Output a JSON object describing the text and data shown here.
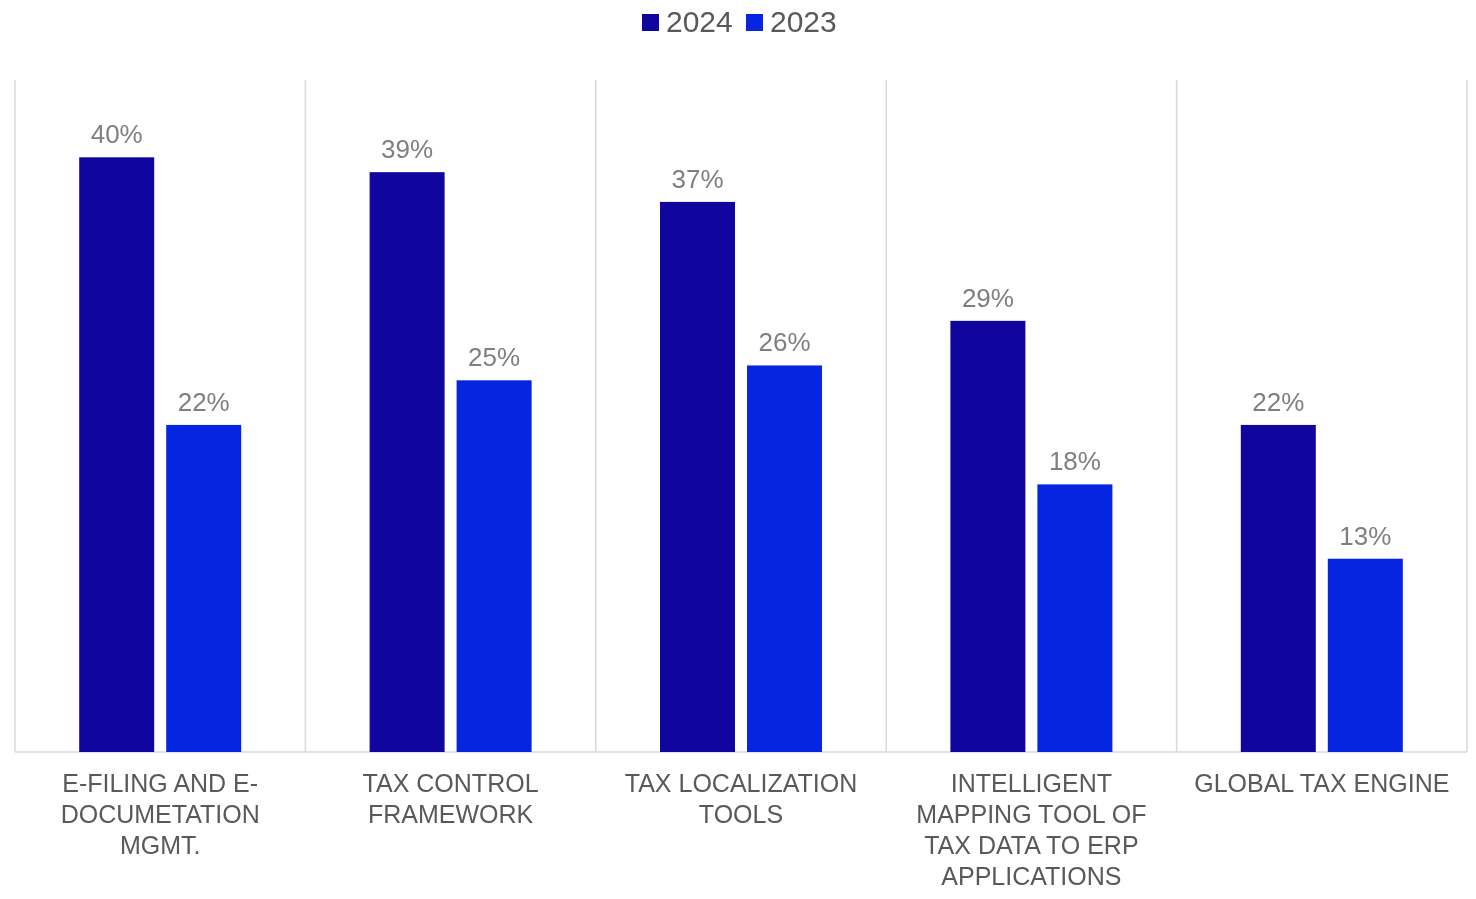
{
  "chart_data": {
    "type": "bar",
    "categories": [
      "E-FILING AND E-DOCUMETATION MGMT.",
      "TAX CONTROL FRAMEWORK",
      "TAX LOCALIZATION TOOLS",
      "INTELLIGENT MAPPING TOOL OF TAX DATA TO ERP APPLICATIONS",
      "GLOBAL TAX ENGINE"
    ],
    "series": [
      {
        "name": "2024",
        "color": "#10069f",
        "values": [
          40,
          39,
          37,
          29,
          22
        ],
        "value_labels": [
          "40%",
          "39%",
          "37%",
          "29%",
          "22%"
        ]
      },
      {
        "name": "2023",
        "color": "#0525e0",
        "values": [
          22,
          25,
          26,
          18,
          13
        ],
        "value_labels": [
          "22%",
          "25%",
          "26%",
          "18%",
          "13%"
        ]
      }
    ],
    "grid": "x",
    "legend": "top"
  }
}
